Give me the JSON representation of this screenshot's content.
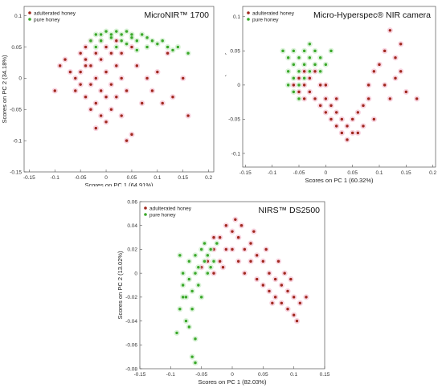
{
  "chart_data": [
    {
      "type": "scatter",
      "title": "MicroNIR™ 1700",
      "xlabel": "Scores on PC 1 (64.91%)",
      "ylabel": "Scores on PC 2 (34.18%)",
      "xlim": [
        -0.16,
        0.21
      ],
      "ylim": [
        -0.15,
        0.115
      ],
      "xticks": [
        -0.15,
        -0.1,
        -0.05,
        0,
        0.05,
        0.1,
        0.15,
        0.2
      ],
      "yticks": [
        -0.15,
        -0.1,
        -0.05,
        0,
        0.05,
        0.1
      ],
      "xtick_labels": [
        "-0.15",
        "-0.1",
        "-0.05",
        "0",
        "0.05",
        "0.1",
        "0.15",
        "0.2"
      ],
      "ytick_labels": [
        "-0.15",
        "-0.1",
        "-0.05",
        "0",
        "0.05",
        "0.1"
      ],
      "legend_position": "top-left",
      "series": [
        {
          "name": "adulterated honey",
          "color": "#a0281e",
          "halo": "#f6c6d6",
          "points": [
            [
              -0.08,
              0.03
            ],
            [
              -0.07,
              0.01
            ],
            [
              -0.06,
              0.0
            ],
            [
              -0.06,
              -0.02
            ],
            [
              -0.05,
              0.04
            ],
            [
              -0.05,
              0.01
            ],
            [
              -0.05,
              -0.01
            ],
            [
              -0.04,
              0.05
            ],
            [
              -0.04,
              0.03
            ],
            [
              -0.04,
              0.02
            ],
            [
              -0.04,
              -0.03
            ],
            [
              -0.03,
              0.06
            ],
            [
              -0.03,
              0.02
            ],
            [
              -0.03,
              -0.01
            ],
            [
              -0.03,
              -0.05
            ],
            [
              -0.02,
              0.04
            ],
            [
              -0.02,
              0.0
            ],
            [
              -0.02,
              -0.04
            ],
            [
              -0.02,
              -0.08
            ],
            [
              -0.01,
              0.06
            ],
            [
              -0.01,
              0.03
            ],
            [
              -0.01,
              -0.02
            ],
            [
              -0.01,
              -0.06
            ],
            [
              0.0,
              0.05
            ],
            [
              0.0,
              0.01
            ],
            [
              0.0,
              -0.03
            ],
            [
              0.0,
              -0.07
            ],
            [
              0.01,
              0.04
            ],
            [
              0.01,
              -0.01
            ],
            [
              0.01,
              -0.05
            ],
            [
              0.02,
              0.06
            ],
            [
              0.02,
              0.02
            ],
            [
              0.02,
              -0.03
            ],
            [
              0.03,
              0.04
            ],
            [
              0.03,
              0.0
            ],
            [
              0.03,
              -0.06
            ],
            [
              0.04,
              -0.02
            ],
            [
              0.05,
              0.05
            ],
            [
              0.05,
              -0.09
            ],
            [
              0.06,
              0.02
            ],
            [
              0.07,
              -0.04
            ],
            [
              0.08,
              0.0
            ],
            [
              0.09,
              -0.02
            ],
            [
              0.1,
              0.01
            ],
            [
              0.11,
              -0.04
            ],
            [
              0.12,
              0.04
            ],
            [
              0.13,
              -0.03
            ],
            [
              0.15,
              0.0
            ],
            [
              -0.1,
              -0.02
            ],
            [
              -0.09,
              0.02
            ],
            [
              0.04,
              -0.1
            ],
            [
              0.16,
              -0.06
            ]
          ]
        },
        {
          "name": "pure honey",
          "color": "#3aa82a",
          "halo": "#cfeecc",
          "points": [
            [
              -0.03,
              0.06
            ],
            [
              -0.02,
              0.07
            ],
            [
              -0.01,
              0.06
            ],
            [
              -0.01,
              0.07
            ],
            [
              0.0,
              0.075
            ],
            [
              0.01,
              0.07
            ],
            [
              0.01,
              0.065
            ],
            [
              0.02,
              0.075
            ],
            [
              0.03,
              0.07
            ],
            [
              0.03,
              0.06
            ],
            [
              0.04,
              0.075
            ],
            [
              0.05,
              0.07
            ],
            [
              0.05,
              0.065
            ],
            [
              0.06,
              0.06
            ],
            [
              0.07,
              0.07
            ],
            [
              0.08,
              0.065
            ],
            [
              0.09,
              0.06
            ],
            [
              0.1,
              0.055
            ],
            [
              0.11,
              0.06
            ],
            [
              0.12,
              0.05
            ],
            [
              0.13,
              0.045
            ],
            [
              0.14,
              0.05
            ],
            [
              0.16,
              0.04
            ],
            [
              0.06,
              0.045
            ],
            [
              0.02,
              0.05
            ],
            [
              -0.02,
              0.05
            ],
            [
              0.04,
              0.055
            ],
            [
              0.08,
              0.05
            ]
          ]
        }
      ]
    },
    {
      "type": "scatter",
      "title": "Micro-Hyperspec® NIR camera",
      "xlabel": "Scores on PC 1 (60.32%)",
      "ylabel": "Scores on PC 2 (38.51%)",
      "xlim": [
        -0.155,
        0.205
      ],
      "ylim": [
        -0.12,
        0.115
      ],
      "xticks": [
        -0.15,
        -0.1,
        -0.05,
        0,
        0.05,
        0.1,
        0.15,
        0.2
      ],
      "yticks": [
        -0.1,
        -0.05,
        0,
        0.05,
        0.1
      ],
      "xtick_labels": [
        "-0.15",
        "-0.1",
        "-0.05",
        "0",
        "0.05",
        "0.1",
        "0.15",
        "0.2"
      ],
      "ytick_labels": [
        "-0.1",
        "-0.05",
        "0",
        "0.05",
        "0.1"
      ],
      "legend_position": "top-left",
      "series": [
        {
          "name": "adulterated honey",
          "color": "#a0281e",
          "halo": "#f6c6d6",
          "points": [
            [
              -0.06,
              0.0
            ],
            [
              -0.05,
              0.01
            ],
            [
              -0.05,
              -0.01
            ],
            [
              -0.04,
              0.02
            ],
            [
              -0.04,
              0.0
            ],
            [
              -0.03,
              -0.01
            ],
            [
              -0.03,
              0.01
            ],
            [
              -0.02,
              0.02
            ],
            [
              -0.02,
              -0.02
            ],
            [
              -0.01,
              -0.03
            ],
            [
              -0.01,
              0.0
            ],
            [
              0.0,
              -0.02
            ],
            [
              0.0,
              -0.04
            ],
            [
              0.01,
              -0.03
            ],
            [
              0.01,
              -0.05
            ],
            [
              0.02,
              -0.04
            ],
            [
              0.02,
              -0.06
            ],
            [
              0.03,
              -0.05
            ],
            [
              0.03,
              -0.07
            ],
            [
              0.04,
              -0.06
            ],
            [
              0.04,
              -0.08
            ],
            [
              0.05,
              -0.07
            ],
            [
              0.05,
              -0.05
            ],
            [
              0.06,
              -0.07
            ],
            [
              0.07,
              -0.06
            ],
            [
              0.07,
              -0.03
            ],
            [
              0.08,
              -0.02
            ],
            [
              0.08,
              0.0
            ],
            [
              0.09,
              0.02
            ],
            [
              0.1,
              0.03
            ],
            [
              0.11,
              0.0
            ],
            [
              0.12,
              -0.02
            ],
            [
              0.13,
              0.01
            ],
            [
              0.14,
              0.02
            ],
            [
              0.15,
              -0.01
            ],
            [
              0.17,
              -0.02
            ],
            [
              0.13,
              0.04
            ],
            [
              0.14,
              0.06
            ],
            [
              0.12,
              0.08
            ],
            [
              0.11,
              0.05
            ],
            [
              -0.04,
              -0.02
            ],
            [
              0.0,
              0.0
            ],
            [
              0.02,
              -0.02
            ],
            [
              0.06,
              -0.04
            ],
            [
              0.09,
              -0.05
            ]
          ]
        },
        {
          "name": "pure honey",
          "color": "#3aa82a",
          "halo": "#cfeecc",
          "points": [
            [
              -0.08,
              0.05
            ],
            [
              -0.07,
              0.04
            ],
            [
              -0.07,
              0.02
            ],
            [
              -0.06,
              0.05
            ],
            [
              -0.06,
              0.03
            ],
            [
              -0.06,
              0.01
            ],
            [
              -0.05,
              0.04
            ],
            [
              -0.05,
              0.02
            ],
            [
              -0.05,
              0.0
            ],
            [
              -0.04,
              0.05
            ],
            [
              -0.04,
              0.03
            ],
            [
              -0.03,
              0.04
            ],
            [
              -0.03,
              0.02
            ],
            [
              -0.02,
              0.05
            ],
            [
              -0.02,
              0.03
            ],
            [
              -0.01,
              0.04
            ],
            [
              -0.01,
              0.02
            ],
            [
              0.0,
              0.03
            ],
            [
              -0.06,
              -0.01
            ],
            [
              -0.05,
              -0.02
            ],
            [
              -0.04,
              0.01
            ],
            [
              -0.07,
              0.0
            ],
            [
              0.01,
              0.05
            ],
            [
              -0.03,
              0.06
            ]
          ]
        }
      ]
    },
    {
      "type": "scatter",
      "title": "NIRS™ DS2500",
      "xlabel": "Scores on PC 1 (82.03%)",
      "ylabel": "Scores on PC 2 (13.02%)",
      "xlim": [
        -0.15,
        0.15
      ],
      "ylim": [
        -0.08,
        0.06
      ],
      "xticks": [
        -0.15,
        -0.1,
        -0.05,
        0,
        0.05,
        0.1,
        0.15
      ],
      "yticks": [
        -0.08,
        -0.06,
        -0.04,
        -0.02,
        0,
        0.02,
        0.04,
        0.06
      ],
      "xtick_labels": [
        "-0.15",
        "-0.1",
        "-0.05",
        "0",
        "0.05",
        "0.1",
        "0.15"
      ],
      "ytick_labels": [
        "-0.08",
        "-0.06",
        "-0.04",
        "-0.02",
        "0",
        "0.02",
        "0.04",
        "0.06"
      ],
      "legend_position": "top-left",
      "series": [
        {
          "name": "adulterated honey",
          "color": "#a0281e",
          "halo": "#f6c6d6",
          "points": [
            [
              -0.04,
              0.01
            ],
            [
              -0.03,
              0.02
            ],
            [
              -0.03,
              0.0
            ],
            [
              -0.02,
              0.03
            ],
            [
              -0.02,
              0.01
            ],
            [
              -0.01,
              0.02
            ],
            [
              -0.01,
              0.04
            ],
            [
              0.0,
              0.035
            ],
            [
              0.0,
              0.02
            ],
            [
              0.005,
              0.045
            ],
            [
              0.01,
              0.03
            ],
            [
              0.01,
              0.01
            ],
            [
              0.02,
              0.02
            ],
            [
              0.02,
              0.0
            ],
            [
              0.03,
              0.025
            ],
            [
              0.03,
              0.01
            ],
            [
              0.04,
              0.015
            ],
            [
              0.04,
              -0.005
            ],
            [
              0.05,
              0.01
            ],
            [
              0.05,
              -0.01
            ],
            [
              0.06,
              0.0
            ],
            [
              0.06,
              -0.015
            ],
            [
              0.07,
              -0.005
            ],
            [
              0.07,
              -0.02
            ],
            [
              0.08,
              -0.01
            ],
            [
              0.08,
              -0.025
            ],
            [
              0.09,
              -0.015
            ],
            [
              0.09,
              -0.03
            ],
            [
              0.1,
              -0.02
            ],
            [
              0.1,
              -0.035
            ],
            [
              0.11,
              -0.025
            ],
            [
              0.12,
              -0.02
            ],
            [
              -0.05,
              0.005
            ],
            [
              -0.03,
              0.03
            ],
            [
              -0.015,
              0.005
            ],
            [
              0.015,
              0.04
            ],
            [
              0.035,
              0.035
            ],
            [
              0.055,
              0.02
            ],
            [
              0.075,
              0.01
            ],
            [
              0.095,
              -0.005
            ],
            [
              0.105,
              -0.04
            ],
            [
              0.085,
              0.0
            ],
            [
              0.065,
              -0.025
            ]
          ]
        },
        {
          "name": "pure honey",
          "color": "#3aa82a",
          "halo": "#cfeecc",
          "points": [
            [
              -0.09,
              -0.05
            ],
            [
              -0.085,
              -0.03
            ],
            [
              -0.08,
              -0.01
            ],
            [
              -0.08,
              0.0
            ],
            [
              -0.075,
              -0.04
            ],
            [
              -0.075,
              -0.02
            ],
            [
              -0.07,
              0.01
            ],
            [
              -0.07,
              -0.005
            ],
            [
              -0.065,
              -0.03
            ],
            [
              -0.065,
              -0.015
            ],
            [
              -0.06,
              0.0
            ],
            [
              -0.06,
              0.015
            ],
            [
              -0.055,
              -0.01
            ],
            [
              -0.055,
              0.005
            ],
            [
              -0.05,
              0.02
            ],
            [
              -0.05,
              -0.02
            ],
            [
              -0.045,
              0.01
            ],
            [
              -0.045,
              0.025
            ],
            [
              -0.04,
              0.0
            ],
            [
              -0.04,
              0.015
            ],
            [
              -0.035,
              0.02
            ],
            [
              -0.03,
              0.01
            ],
            [
              -0.065,
              -0.07
            ],
            [
              -0.06,
              -0.075
            ],
            [
              -0.07,
              -0.045
            ],
            [
              -0.08,
              -0.02
            ],
            [
              -0.085,
              0.015
            ],
            [
              -0.06,
              -0.055
            ],
            [
              -0.025,
              0.025
            ],
            [
              -0.035,
              0.005
            ]
          ]
        }
      ]
    }
  ]
}
